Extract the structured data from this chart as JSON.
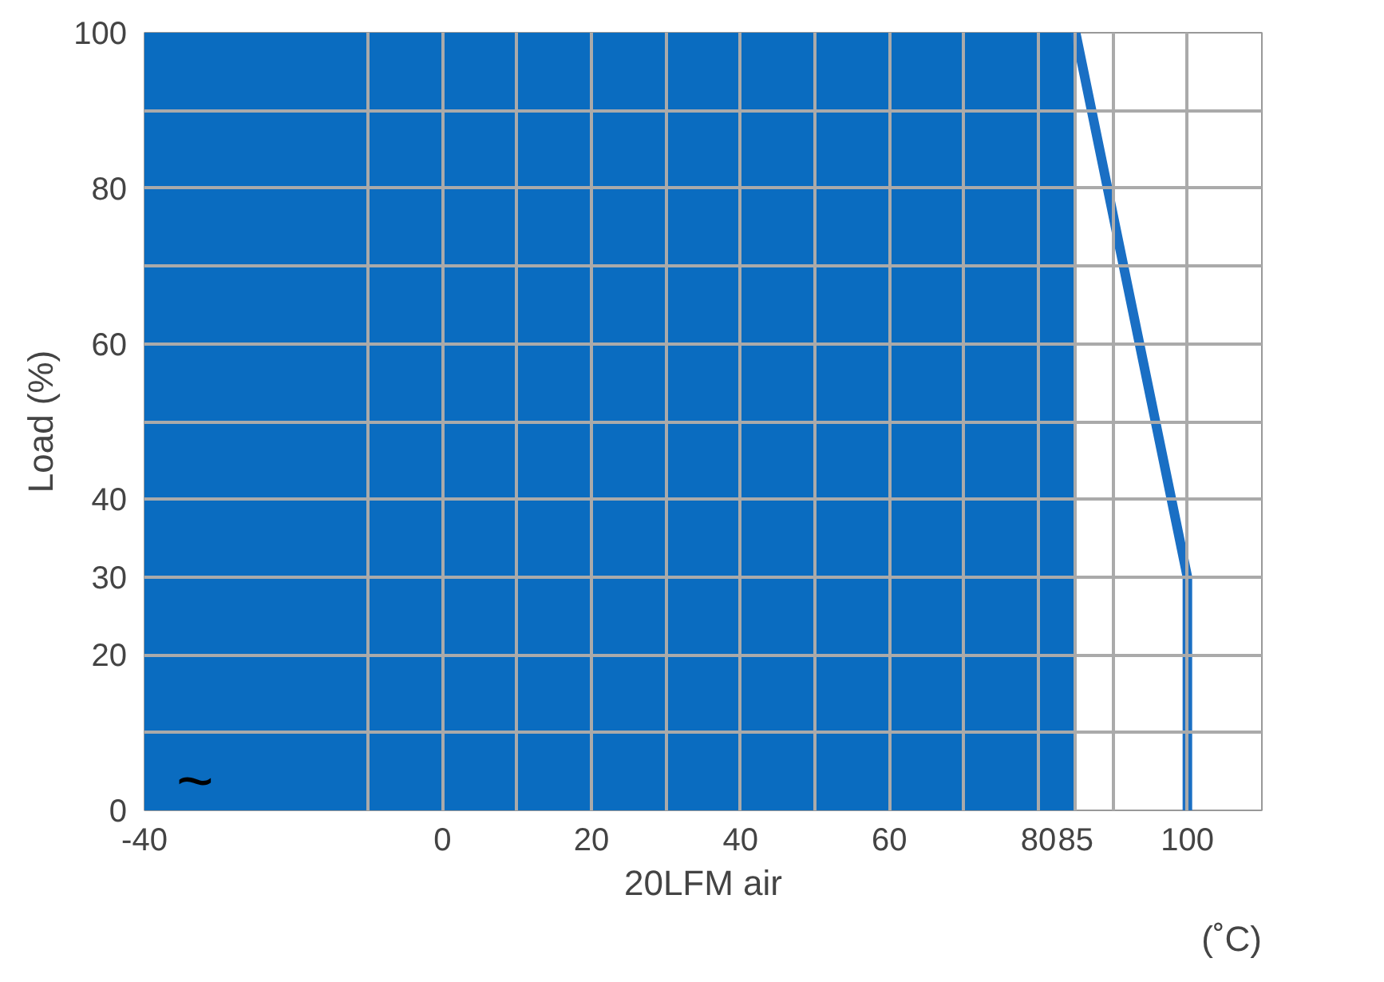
{
  "chart_data": {
    "type": "area",
    "xlabel": "20LFM air",
    "ylabel": "Load (%)",
    "series": [
      {
        "color": "#0a6cc0",
        "x": [
          -40,
          85
        ],
        "values": [
          100,
          100
        ]
      },
      {
        "type": "line",
        "color": "#1a6fc4",
        "x": [
          85,
          100,
          100
        ],
        "values": [
          100,
          30,
          0
        ]
      }
    ],
    "xlim": [
      -40,
      110
    ],
    "ylim": [
      0,
      100
    ],
    "xticks": [
      -40,
      {
        "value": -10,
        "label": null
      },
      0,
      {
        "value": 10,
        "label": null
      },
      20,
      {
        "value": 30,
        "label": null
      },
      40,
      {
        "value": 50,
        "label": null
      },
      60,
      {
        "value": 70,
        "label": null
      },
      80,
      85,
      {
        "value": 90,
        "label": null
      },
      100
    ],
    "yticks": [
      0,
      {
        "value": 10,
        "label": null
      },
      20,
      30,
      40,
      {
        "value": 50,
        "label": null
      },
      60,
      {
        "value": 70,
        "label": null
      },
      80,
      {
        "value": 90,
        "label": null
      },
      100
    ],
    "grid": true,
    "line_style": "solid",
    "marker": "none",
    "annotations": [
      "(˚C)",
      "~"
    ]
  }
}
